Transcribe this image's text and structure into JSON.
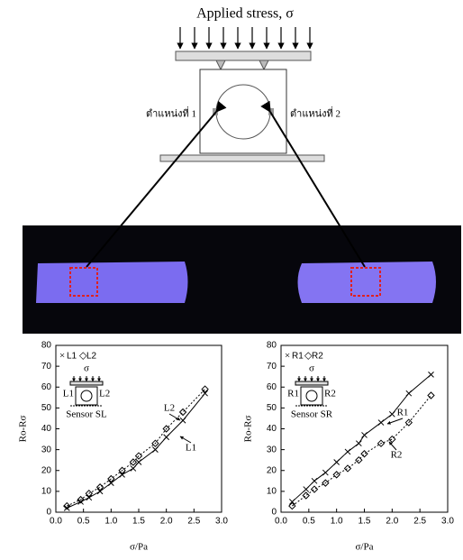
{
  "diagram": {
    "title": "Applied stress, σ",
    "position_left": "ตำแหน่งที่ 1",
    "position_right": "ตำแหน่งที่ 2"
  },
  "chart_data": [
    {
      "type": "scatter",
      "ylabel": "Ro-Rσ",
      "xlabel": "σ/Pa",
      "xlim": [
        0,
        3
      ],
      "ylim": [
        0,
        80
      ],
      "xticks": [
        {
          "value": 0,
          "label": "0.0"
        },
        0.5,
        {
          "value": 1,
          "label": "1.0"
        },
        1.5,
        {
          "value": 2,
          "label": "2.0"
        },
        2.5,
        {
          "value": 3,
          "label": "3.0"
        }
      ],
      "yticks": [
        0,
        10,
        20,
        30,
        40,
        50,
        60,
        70,
        80
      ],
      "series": [
        {
          "name": "L1",
          "color": "#000000",
          "marker": "x",
          "line_style": "solid",
          "x": [
            0.2,
            0.45,
            0.6,
            0.8,
            1.0,
            1.2,
            1.4,
            1.5,
            1.8,
            2.0,
            2.3,
            2.7
          ],
          "values": [
            2,
            5,
            7,
            10,
            14,
            18,
            21,
            24,
            30,
            36,
            44,
            57
          ]
        },
        {
          "name": "L2",
          "color": "#000000",
          "marker": "diamond",
          "line_style": "dotted",
          "x": [
            0.2,
            0.45,
            0.6,
            0.8,
            1.0,
            1.2,
            1.4,
            1.5,
            1.8,
            2.0,
            2.3,
            2.7
          ],
          "values": [
            3,
            6,
            9,
            12,
            16,
            20,
            24,
            27,
            33,
            40,
            48,
            59
          ]
        }
      ],
      "inset": {
        "load": "σ",
        "left": "L1",
        "right": "L2",
        "caption": "Sensor SL"
      },
      "annotations": [
        "L2",
        "L1"
      ]
    },
    {
      "type": "scatter",
      "ylabel": "Ro-Rσ",
      "xlabel": "σ/Pa",
      "xlim": [
        0,
        3
      ],
      "ylim": [
        0,
        80
      ],
      "xticks": [
        {
          "value": 0,
          "label": "0.0"
        },
        0.5,
        {
          "value": 1,
          "label": "1.0"
        },
        1.5,
        {
          "value": 2,
          "label": "2.0"
        },
        2.5,
        {
          "value": 3,
          "label": "3.0"
        }
      ],
      "yticks": [
        0,
        10,
        20,
        30,
        40,
        50,
        60,
        70,
        80
      ],
      "series": [
        {
          "name": "R1",
          "color": "#000000",
          "marker": "x",
          "line_style": "solid",
          "x": [
            0.2,
            0.45,
            0.6,
            0.8,
            1.0,
            1.2,
            1.4,
            1.5,
            1.8,
            2.0,
            2.3,
            2.7
          ],
          "values": [
            5,
            11,
            15,
            19,
            24,
            29,
            33,
            37,
            43,
            47,
            57,
            66
          ]
        },
        {
          "name": "R2",
          "color": "#000000",
          "marker": "diamond",
          "line_style": "dotted",
          "x": [
            0.2,
            0.45,
            0.6,
            0.8,
            1.0,
            1.2,
            1.4,
            1.5,
            1.8,
            2.0,
            2.3,
            2.7
          ],
          "values": [
            3,
            8,
            11,
            14,
            18,
            21,
            25,
            28,
            33,
            35,
            43,
            56
          ]
        }
      ],
      "inset": {
        "load": "σ",
        "left": "R1",
        "right": "R2",
        "caption": "Sensor SR"
      },
      "annotations": [
        "R1",
        "R2"
      ]
    }
  ]
}
